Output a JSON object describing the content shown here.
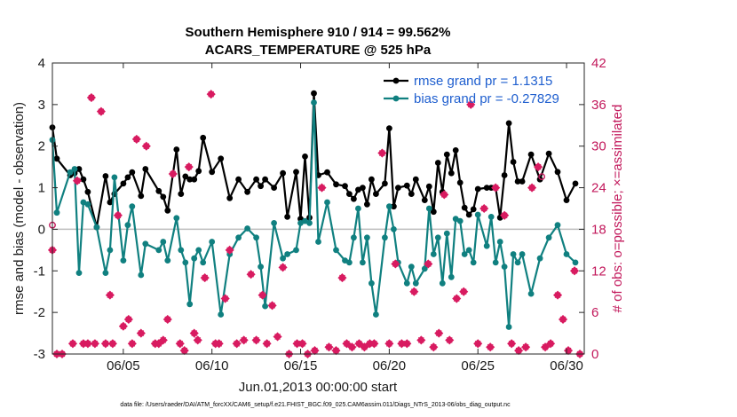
{
  "chart_data": {
    "type": "line",
    "title": "Southern Hemisphere 910 / 914 = 99.562%",
    "subtitle": "ACARS_TEMPERATURE @ 525 hPa",
    "xlabel": "Jun.01,2013 00:00:00 start",
    "ylabel": "rmse and bias (model - observation)",
    "y2label": "# of obs: o=possible; ×=assimilated",
    "footer": "data file: /Users/raeder/DAI/ATM_forcXX/CAM6_setup/f.e21.FHIST_BGC.f09_025.CAM6assim.011/Diags_NTrS_2013-06/obs_diag_output.nc",
    "xlim": [
      1,
      31
    ],
    "ylim": [
      -3,
      4
    ],
    "y2lim": [
      0,
      42
    ],
    "x_ticks": [
      5,
      10,
      15,
      20,
      25,
      30
    ],
    "x_tick_labels": [
      "06/05",
      "06/10",
      "06/15",
      "06/20",
      "06/25",
      "06/30"
    ],
    "y_ticks": [
      -3,
      -2,
      -1,
      0,
      1,
      2,
      3,
      4
    ],
    "y_tick_labels": [
      "-3",
      "-2",
      "-1",
      "0",
      "1",
      "2",
      "3",
      "4"
    ],
    "y2_ticks": [
      0,
      6,
      12,
      18,
      24,
      30,
      36,
      42
    ],
    "y2_tick_labels": [
      "0",
      "6",
      "12",
      "18",
      "24",
      "30",
      "36",
      "42"
    ],
    "zero_line": 0,
    "series": [
      {
        "name": "rmse grand pr = 1.1315",
        "color": "#000000",
        "axis": "left",
        "x": [
          1.0,
          1.25,
          2.0,
          2.25,
          2.5,
          2.75,
          3.0,
          3.5,
          4.0,
          4.25,
          4.5,
          5.0,
          5.25,
          5.5,
          6.0,
          6.25,
          7.0,
          7.25,
          7.5,
          8.0,
          8.25,
          8.5,
          8.75,
          9.0,
          9.25,
          9.5,
          10.0,
          10.5,
          11.0,
          11.5,
          12.0,
          12.5,
          12.75,
          13.0,
          13.5,
          14.0,
          14.25,
          14.75,
          15.0,
          15.25,
          15.5,
          15.75,
          16.0,
          16.5,
          17.0,
          17.5,
          17.75,
          18.0,
          18.25,
          18.5,
          18.75,
          19.0,
          19.25,
          19.75,
          20.0,
          20.25,
          20.5,
          21.0,
          21.25,
          21.5,
          22.0,
          22.25,
          22.5,
          22.75,
          23.0,
          23.25,
          23.5,
          23.75,
          24.0,
          24.25,
          24.5,
          24.75,
          25.0,
          25.5,
          25.75,
          26.0,
          26.25,
          26.5,
          26.75,
          27.0,
          27.25,
          27.5,
          28.0,
          28.5,
          29.0,
          29.5,
          30.0,
          30.5
        ],
        "y": [
          2.45,
          1.7,
          1.3,
          1.35,
          1.45,
          1.2,
          0.9,
          0.05,
          1.28,
          0.65,
          0.85,
          1.1,
          1.25,
          1.37,
          0.8,
          1.45,
          0.92,
          0.78,
          0.45,
          1.92,
          0.85,
          1.27,
          1.2,
          1.2,
          1.4,
          2.2,
          1.38,
          1.7,
          0.75,
          1.2,
          0.9,
          1.2,
          1.04,
          1.2,
          1.0,
          1.35,
          0.3,
          1.38,
          0.25,
          1.75,
          0.28,
          3.27,
          1.3,
          1.37,
          1.08,
          1.04,
          0.85,
          0.73,
          0.95,
          1.0,
          0.6,
          1.2,
          0.85,
          1.1,
          2.43,
          0.55,
          1.0,
          1.05,
          0.85,
          1.2,
          0.7,
          1.03,
          0.42,
          1.6,
          0.9,
          1.8,
          1.35,
          1.9,
          1.12,
          0.52,
          0.35,
          0.48,
          0.97,
          1.0,
          1.0,
          1.0,
          0.28,
          1.3,
          2.55,
          1.62,
          1.15,
          1.15,
          1.8,
          1.2,
          1.82,
          1.38,
          0.7,
          1.1
        ]
      },
      {
        "name": "bias grand pr = -0.27829",
        "color": "#108080",
        "axis": "left",
        "x": [
          1.0,
          1.25,
          2.0,
          2.25,
          2.5,
          2.75,
          3.0,
          3.5,
          4.0,
          4.25,
          4.5,
          5.0,
          5.25,
          5.5,
          6.0,
          6.25,
          7.0,
          7.25,
          7.5,
          8.0,
          8.25,
          8.5,
          8.75,
          9.0,
          9.25,
          9.5,
          10.0,
          10.5,
          11.0,
          11.5,
          12.0,
          12.5,
          12.75,
          13.0,
          13.5,
          14.0,
          14.25,
          14.75,
          15.0,
          15.25,
          15.5,
          15.75,
          16.0,
          16.5,
          17.0,
          17.5,
          17.75,
          18.0,
          18.25,
          18.5,
          18.75,
          19.0,
          19.25,
          19.75,
          20.0,
          20.25,
          20.5,
          21.0,
          21.25,
          21.5,
          22.0,
          22.25,
          22.5,
          22.75,
          23.0,
          23.25,
          23.5,
          23.75,
          24.0,
          24.25,
          24.5,
          24.75,
          25.0,
          25.5,
          25.75,
          26.0,
          26.25,
          26.5,
          26.75,
          27.0,
          27.25,
          27.5,
          28.0,
          28.5,
          29.0,
          29.5,
          30.0,
          30.5
        ],
        "y": [
          2.15,
          0.4,
          1.37,
          1.45,
          -1.05,
          0.65,
          0.6,
          0.05,
          -1.05,
          -0.5,
          1.25,
          -0.75,
          0.1,
          0.55,
          -1.1,
          -0.35,
          -0.5,
          -0.3,
          -0.75,
          0.27,
          -0.5,
          -0.8,
          -1.8,
          -0.7,
          -0.5,
          -0.8,
          -0.3,
          -2.05,
          -0.6,
          -0.2,
          0.02,
          -0.2,
          -0.9,
          -1.85,
          0.15,
          -0.7,
          -0.6,
          -0.5,
          0.15,
          0.2,
          0.15,
          3.05,
          -0.3,
          0.65,
          -0.5,
          -0.75,
          -0.8,
          -0.2,
          0.5,
          -0.8,
          -0.2,
          -1.3,
          -2.05,
          -0.2,
          0.55,
          0.0,
          -0.8,
          -1.3,
          -0.9,
          -1.3,
          -0.95,
          0.5,
          -0.6,
          -0.2,
          -1.3,
          -0.1,
          -1.15,
          0.25,
          0.2,
          -0.6,
          -0.5,
          -0.8,
          0.35,
          -0.4,
          0.3,
          -0.8,
          -0.3,
          -0.9,
          -2.35,
          -0.6,
          -0.8,
          -0.6,
          -1.55,
          -0.7,
          -0.2,
          0.1,
          -0.6,
          -0.8
        ]
      },
      {
        "name": "# of obs possible",
        "color": "#c2185b",
        "axis": "right",
        "marker": "circle",
        "x": [
          1.0,
          28.6
        ],
        "y": [
          18.6,
          25.6
        ]
      },
      {
        "name": "# of obs assimilated",
        "color": "#d81b60",
        "axis": "right",
        "marker": "x",
        "x": [
          1.0,
          1.25,
          1.55,
          2.15,
          2.4,
          2.75,
          3.0,
          3.2,
          3.4,
          3.75,
          4.0,
          4.25,
          4.4,
          4.7,
          5.0,
          5.3,
          5.5,
          5.75,
          6.0,
          6.3,
          6.8,
          7.0,
          7.25,
          7.5,
          7.8,
          8.2,
          8.45,
          8.7,
          9.0,
          9.2,
          9.6,
          9.95,
          10.2,
          10.4,
          10.75,
          11.0,
          11.4,
          11.8,
          12.2,
          12.5,
          12.85,
          13.1,
          13.4,
          13.7,
          14.0,
          14.35,
          14.8,
          15.1,
          15.4,
          15.8,
          16.2,
          16.6,
          17.0,
          17.35,
          17.6,
          17.9,
          18.3,
          18.6,
          18.9,
          19.15,
          19.6,
          20.0,
          20.35,
          20.7,
          21.0,
          21.4,
          21.8,
          22.2,
          22.5,
          22.8,
          23.1,
          23.4,
          23.8,
          24.2,
          24.6,
          25.0,
          25.35,
          25.7,
          26.0,
          26.5,
          26.9,
          27.3,
          27.7,
          28.05,
          28.4,
          28.8,
          29.1,
          29.5,
          29.8,
          30.1,
          30.45,
          30.75
        ],
        "y": [
          15.0,
          0.0,
          0.0,
          1.5,
          25.0,
          1.5,
          1.5,
          37.0,
          1.5,
          35.0,
          1.5,
          8.5,
          1.5,
          20.0,
          4.0,
          5.0,
          1.5,
          31.0,
          3.0,
          30.0,
          1.5,
          1.5,
          2.0,
          5.0,
          26.0,
          1.5,
          0.5,
          27.0,
          3.0,
          2.0,
          11.0,
          37.5,
          1.5,
          1.5,
          8.0,
          15.0,
          1.5,
          2.0,
          11.5,
          2.0,
          8.5,
          1.5,
          7.0,
          2.5,
          12.5,
          0.0,
          1.5,
          1.5,
          0.0,
          0.5,
          24.0,
          1.0,
          0.5,
          11.0,
          1.5,
          1.0,
          1.5,
          1.0,
          1.5,
          1.5,
          29.0,
          1.5,
          13.0,
          1.5,
          1.5,
          9.0,
          2.0,
          13.0,
          1.0,
          3.0,
          23.0,
          2.0,
          8.0,
          9.0,
          36.0,
          1.5,
          21.0,
          1.0,
          24.0,
          20.0,
          1.5,
          0.5,
          1.0,
          24.0,
          27.0,
          1.0,
          1.5,
          8.5,
          5.0,
          0.5,
          12.0,
          0.0
        ]
      }
    ]
  }
}
